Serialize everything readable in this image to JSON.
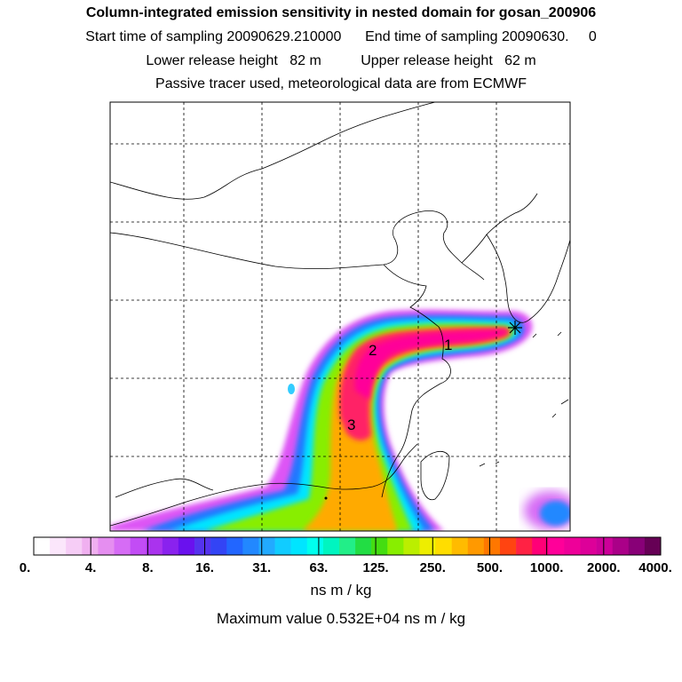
{
  "header": {
    "title": "Column-integrated emission sensitivity in nested domain for gosan_200906",
    "sampling": "Start time of sampling 20090629.210000      End time of sampling 20090630.     0",
    "release": "Lower release height   82 m          Upper release height   62 m",
    "tracer": "Passive tracer used, meteorological data are from ECMWF"
  },
  "map": {
    "markers": [
      "1",
      "2",
      "3"
    ],
    "receptor_symbol": "receptor-star"
  },
  "colorbar": {
    "labels": [
      "0.",
      "4.",
      "8.",
      "16.",
      "31.",
      "63.",
      "125.",
      "250.",
      "500.",
      "1000.",
      "2000.",
      "4000."
    ],
    "colors": [
      "#ffffff",
      "#fbe6fb",
      "#f6cdf6",
      "#f0b0f0",
      "#e58ef0",
      "#d66cf5",
      "#c24cf5",
      "#aa33ee",
      "#8a22ee",
      "#6a11ee",
      "#5533ee",
      "#3344f5",
      "#2266ff",
      "#2288ff",
      "#22aaff",
      "#11ccff",
      "#00e5ff",
      "#00ffee",
      "#00f5c0",
      "#22ee88",
      "#22dd44",
      "#44dd11",
      "#88ee00",
      "#bbee00",
      "#eeee00",
      "#ffdd00",
      "#ffbb00",
      "#ff9900",
      "#ff7700",
      "#ff4411",
      "#ff2244",
      "#ff0077",
      "#ff0099",
      "#ee0099",
      "#dd0099",
      "#cc0099",
      "#aa0088",
      "#880077",
      "#660055"
    ]
  },
  "units": "ns m / kg",
  "maximum": "Maximum value  0.532E+04 ns m / kg"
}
